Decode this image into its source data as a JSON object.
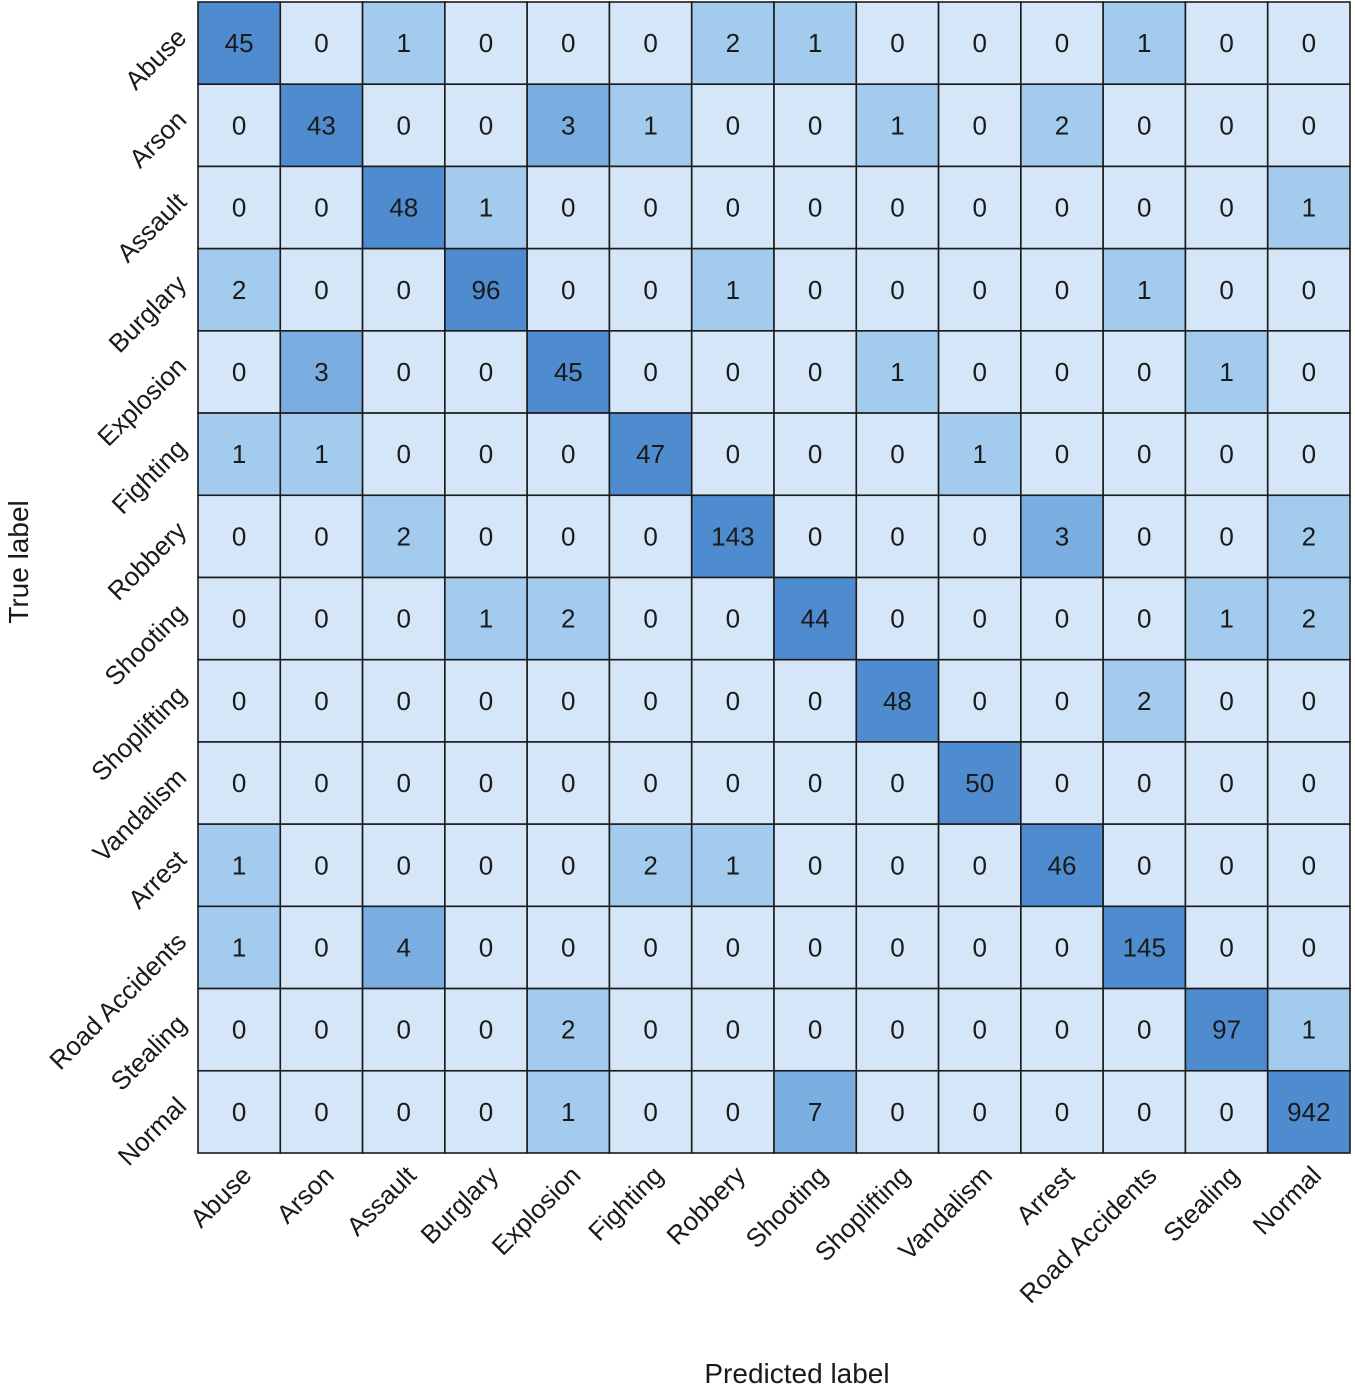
{
  "chart_data": {
    "type": "heatmap",
    "title": "",
    "xlabel": "Predicted label",
    "ylabel": "True label",
    "categories": [
      "Abuse",
      "Arson",
      "Assault",
      "Burglary",
      "Explosion",
      "Fighting",
      "Robbery",
      "Shooting",
      "Shoplifting",
      "Vandalism",
      "Arrest",
      "Road Accidents",
      "Stealing",
      "Normal"
    ],
    "matrix": [
      [
        45,
        0,
        1,
        0,
        0,
        0,
        2,
        1,
        0,
        0,
        0,
        1,
        0,
        0
      ],
      [
        0,
        43,
        0,
        0,
        3,
        1,
        0,
        0,
        1,
        0,
        2,
        0,
        0,
        0
      ],
      [
        0,
        0,
        48,
        1,
        0,
        0,
        0,
        0,
        0,
        0,
        0,
        0,
        0,
        1
      ],
      [
        2,
        0,
        0,
        96,
        0,
        0,
        1,
        0,
        0,
        0,
        0,
        1,
        0,
        0
      ],
      [
        0,
        3,
        0,
        0,
        45,
        0,
        0,
        0,
        1,
        0,
        0,
        0,
        1,
        0
      ],
      [
        1,
        1,
        0,
        0,
        0,
        47,
        0,
        0,
        0,
        1,
        0,
        0,
        0,
        0
      ],
      [
        0,
        0,
        2,
        0,
        0,
        0,
        143,
        0,
        0,
        0,
        3,
        0,
        0,
        2
      ],
      [
        0,
        0,
        0,
        1,
        2,
        0,
        0,
        44,
        0,
        0,
        0,
        0,
        1,
        2
      ],
      [
        0,
        0,
        0,
        0,
        0,
        0,
        0,
        0,
        48,
        0,
        0,
        2,
        0,
        0
      ],
      [
        0,
        0,
        0,
        0,
        0,
        0,
        0,
        0,
        0,
        50,
        0,
        0,
        0,
        0
      ],
      [
        1,
        0,
        0,
        0,
        0,
        2,
        1,
        0,
        0,
        0,
        46,
        0,
        0,
        0
      ],
      [
        1,
        0,
        4,
        0,
        0,
        0,
        0,
        0,
        0,
        0,
        0,
        145,
        0,
        0
      ],
      [
        0,
        0,
        0,
        0,
        2,
        0,
        0,
        0,
        0,
        0,
        0,
        0,
        97,
        1
      ],
      [
        0,
        0,
        0,
        0,
        1,
        0,
        0,
        7,
        0,
        0,
        0,
        0,
        0,
        942
      ]
    ],
    "colors": {
      "zero": "#d4e6f7",
      "low": "#a3cbed",
      "mid": "#7aaee0",
      "diagonal": "#4f8ccf",
      "grid": "#1a1a1a",
      "text": "#1a1a1a"
    }
  }
}
